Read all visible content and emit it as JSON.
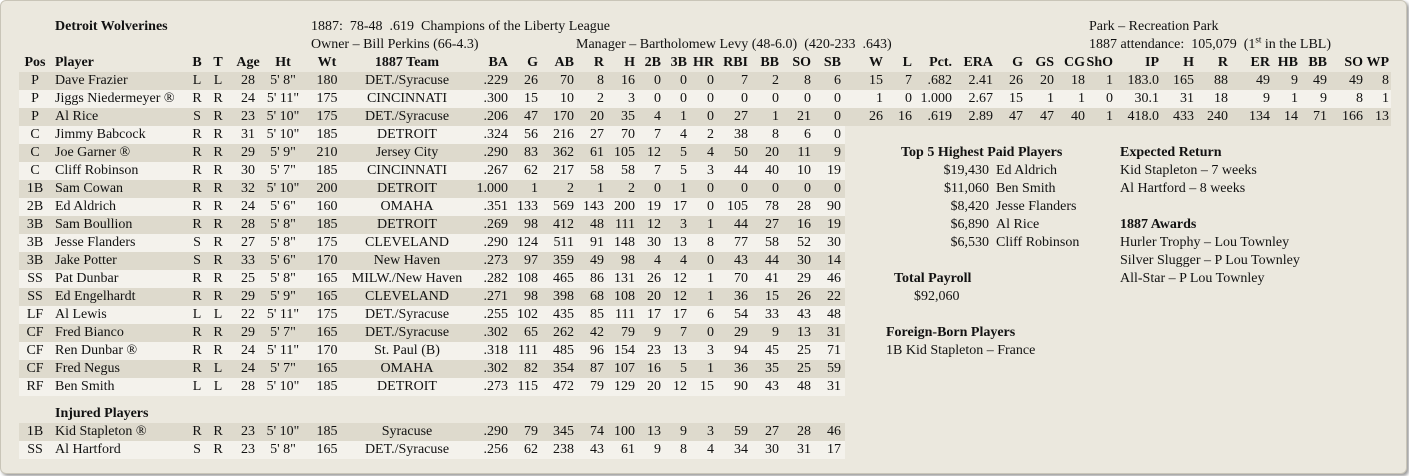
{
  "header": {
    "team": "Detroit Wolverines",
    "season": "1887:  78-48  .619  Champions of the Liberty League",
    "owner": "Owner – Bill Perkins (66-4.3)",
    "manager": "Manager – Bartholomew Levy (48-6.0)  (420-233  .643)",
    "park": "Park – Recreation Park",
    "attendance": {
      "text": "1887 attendance:  105,079  (1",
      "sup": "st",
      "suffix": " in the LBL)"
    }
  },
  "table": {
    "columns": [
      "Pos",
      "Player",
      "B",
      "T",
      "Age",
      "Ht",
      "Wt",
      "1887 Team",
      "BA",
      "G",
      "AB",
      "R",
      "H",
      "2B",
      "3B",
      "HR",
      "RBI",
      "BB",
      "SO",
      "SB",
      "W",
      "L",
      "Pct.",
      "ERA",
      "G",
      "GS",
      "CG",
      "ShO",
      "IP",
      "H",
      "R",
      "ER",
      "HB",
      "BB",
      "SO",
      "WP"
    ],
    "rows": [
      [
        "P",
        "Dave Frazier",
        "L",
        "L",
        "28",
        "5' 8\"",
        "180",
        "DET./Syracuse",
        ".229",
        "26",
        "70",
        "8",
        "16",
        "0",
        "0",
        "0",
        "7",
        "2",
        "8",
        "6",
        "15",
        "7",
        ".682",
        "2.41",
        "26",
        "20",
        "18",
        "1",
        "183.0",
        "165",
        "88",
        "49",
        "9",
        "49",
        "49",
        "8"
      ],
      [
        "P",
        "Jiggs Niedermeyer ®",
        "R",
        "R",
        "24",
        "5' 11\"",
        "175",
        "CINCINNATI",
        ".300",
        "15",
        "10",
        "2",
        "3",
        "0",
        "0",
        "0",
        "0",
        "0",
        "0",
        "0",
        "1",
        "0",
        "1.000",
        "2.67",
        "15",
        "1",
        "1",
        "0",
        "30.1",
        "31",
        "18",
        "9",
        "1",
        "9",
        "8",
        "1"
      ],
      [
        "P",
        "Al Rice",
        "S",
        "R",
        "23",
        "5' 10\"",
        "175",
        "DET./Syracuse",
        ".206",
        "47",
        "170",
        "20",
        "35",
        "4",
        "1",
        "0",
        "27",
        "1",
        "21",
        "0",
        "26",
        "16",
        ".619",
        "2.89",
        "47",
        "47",
        "40",
        "1",
        "418.0",
        "433",
        "240",
        "134",
        "14",
        "71",
        "166",
        "13"
      ],
      [
        "C",
        "Jimmy Babcock",
        "R",
        "R",
        "31",
        "5' 10\"",
        "185",
        "DETROIT",
        ".324",
        "56",
        "216",
        "27",
        "70",
        "7",
        "4",
        "2",
        "38",
        "8",
        "6",
        "0"
      ],
      [
        "C",
        "Joe Garner ®",
        "R",
        "R",
        "29",
        "5' 9\"",
        "210",
        "Jersey City",
        ".290",
        "83",
        "362",
        "61",
        "105",
        "12",
        "5",
        "4",
        "50",
        "20",
        "11",
        "9"
      ],
      [
        "C",
        "Cliff Robinson",
        "R",
        "R",
        "30",
        "5' 7\"",
        "185",
        "CINCINNATI",
        ".267",
        "62",
        "217",
        "58",
        "58",
        "7",
        "5",
        "3",
        "44",
        "40",
        "10",
        "19"
      ],
      [
        "1B",
        "Sam Cowan",
        "R",
        "R",
        "32",
        "5' 10\"",
        "200",
        "DETROIT",
        "1.000",
        "1",
        "2",
        "1",
        "2",
        "0",
        "1",
        "0",
        "0",
        "0",
        "0",
        "0"
      ],
      [
        "2B",
        "Ed Aldrich",
        "R",
        "R",
        "24",
        "5' 6\"",
        "160",
        "OMAHA",
        ".351",
        "133",
        "569",
        "143",
        "200",
        "19",
        "17",
        "0",
        "105",
        "78",
        "28",
        "90"
      ],
      [
        "3B",
        "Sam Boullion",
        "R",
        "R",
        "28",
        "5' 8\"",
        "185",
        "DETROIT",
        ".269",
        "98",
        "412",
        "48",
        "111",
        "12",
        "3",
        "1",
        "44",
        "27",
        "16",
        "19"
      ],
      [
        "3B",
        "Jesse Flanders",
        "S",
        "R",
        "27",
        "5' 8\"",
        "175",
        "CLEVELAND",
        ".290",
        "124",
        "511",
        "91",
        "148",
        "30",
        "13",
        "8",
        "77",
        "58",
        "52",
        "30"
      ],
      [
        "3B",
        "Jake Potter",
        "S",
        "R",
        "33",
        "5' 6\"",
        "170",
        "New Haven",
        ".273",
        "97",
        "359",
        "49",
        "98",
        "4",
        "4",
        "0",
        "43",
        "44",
        "30",
        "14"
      ],
      [
        "SS",
        "Pat Dunbar",
        "R",
        "R",
        "25",
        "5' 8\"",
        "165",
        "MILW./New Haven",
        ".282",
        "108",
        "465",
        "86",
        "131",
        "26",
        "12",
        "1",
        "70",
        "41",
        "29",
        "46"
      ],
      [
        "SS",
        "Ed Engelhardt",
        "R",
        "R",
        "29",
        "5' 9\"",
        "165",
        "CLEVELAND",
        ".271",
        "98",
        "398",
        "68",
        "108",
        "20",
        "12",
        "1",
        "36",
        "15",
        "26",
        "22"
      ],
      [
        "LF",
        "Al Lewis",
        "L",
        "L",
        "22",
        "5' 11\"",
        "175",
        "DET./Syracuse",
        ".255",
        "102",
        "435",
        "85",
        "111",
        "17",
        "17",
        "6",
        "54",
        "33",
        "43",
        "48"
      ],
      [
        "CF",
        "Fred Bianco",
        "R",
        "R",
        "29",
        "5' 7\"",
        "165",
        "DET./Syracuse",
        ".302",
        "65",
        "262",
        "42",
        "79",
        "9",
        "7",
        "0",
        "29",
        "9",
        "13",
        "31"
      ],
      [
        "CF",
        "Ren Dunbar ®",
        "R",
        "R",
        "24",
        "5' 11\"",
        "170",
        "St. Paul (B)",
        ".318",
        "111",
        "485",
        "96",
        "154",
        "23",
        "13",
        "3",
        "94",
        "45",
        "25",
        "71"
      ],
      [
        "CF",
        "Fred Negus",
        "R",
        "L",
        "24",
        "5' 7\"",
        "165",
        "OMAHA",
        ".302",
        "82",
        "354",
        "87",
        "107",
        "16",
        "5",
        "1",
        "36",
        "35",
        "25",
        "59"
      ],
      [
        "RF",
        "Ben Smith",
        "L",
        "L",
        "28",
        "5' 10\"",
        "185",
        "DETROIT",
        ".273",
        "115",
        "472",
        "79",
        "129",
        "20",
        "12",
        "15",
        "90",
        "43",
        "48",
        "31"
      ]
    ],
    "injured_title": "Injured Players",
    "injured_rows": [
      [
        "1B",
        "Kid Stapleton ®",
        "R",
        "R",
        "23",
        "5' 10\"",
        "185",
        "Syracuse",
        ".290",
        "79",
        "345",
        "74",
        "100",
        "13",
        "9",
        "3",
        "59",
        "27",
        "28",
        "46"
      ],
      [
        "SS",
        "Al Hartford",
        "S",
        "R",
        "23",
        "5' 8\"",
        "165",
        "DET./Syracuse",
        ".256",
        "62",
        "238",
        "43",
        "61",
        "9",
        "8",
        "4",
        "34",
        "30",
        "31",
        "17"
      ]
    ]
  },
  "top_paid": {
    "title": "Top 5 Highest Paid Players",
    "rows": [
      [
        "$19,430",
        "Ed Aldrich"
      ],
      [
        "$11,060",
        "Ben Smith"
      ],
      [
        "$8,420",
        "Jesse Flanders"
      ],
      [
        "$6,890",
        "Al Rice"
      ],
      [
        "$6,530",
        "Cliff Robinson"
      ]
    ]
  },
  "payroll": {
    "title": "Total Payroll",
    "value": "$92,060"
  },
  "foreign_born": {
    "title": "Foreign-Born Players",
    "items": [
      "1B Kid Stapleton – France"
    ]
  },
  "expected_return": {
    "title": "Expected Return",
    "items": [
      "Kid Stapleton – 7 weeks",
      "Al Hartford – 8 weeks"
    ]
  },
  "awards": {
    "title": "1887 Awards",
    "items": [
      "Hurler Trophy – Lou Townley",
      "Silver Slugger – P Lou Townley",
      "All-Star – P Lou Townley"
    ]
  }
}
